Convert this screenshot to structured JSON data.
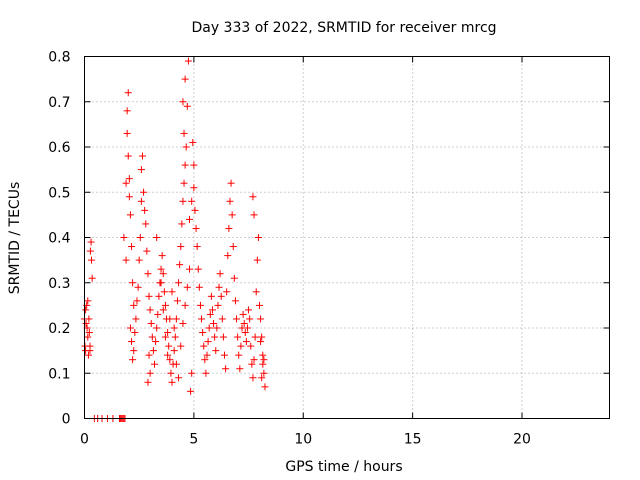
{
  "chart_data": {
    "type": "scatter",
    "title": "Day 333 of 2022, SRMTID for receiver mrcg",
    "xlabel": "GPS time / hours",
    "ylabel": "SRMTID / TECUs",
    "xlim": [
      0,
      24
    ],
    "ylim": [
      0,
      0.8
    ],
    "x_ticks": [
      0,
      5,
      10,
      15,
      20
    ],
    "x_tick_labels": [
      "0",
      "5",
      "10",
      "15",
      "20"
    ],
    "y_ticks": [
      0,
      0.1,
      0.2,
      0.3,
      0.4,
      0.5,
      0.6,
      0.7,
      0.8
    ],
    "y_tick_labels": [
      "0",
      "0.1",
      "0.2",
      "0.3",
      "0.4",
      "0.5",
      "0.6",
      "0.7",
      "0.8"
    ],
    "grid": true,
    "marker": "+",
    "marker_color": "#ff0000",
    "series": [
      {
        "name": "SRMTID",
        "points": [
          [
            0.0,
            0.22
          ],
          [
            0.02,
            0.16
          ],
          [
            0.05,
            0.15
          ],
          [
            0.07,
            0.21
          ],
          [
            0.1,
            0.25
          ],
          [
            0.12,
            0.2
          ],
          [
            0.15,
            0.18
          ],
          [
            0.18,
            0.14
          ],
          [
            0.2,
            0.22
          ],
          [
            0.22,
            0.19
          ],
          [
            0.25,
            0.16
          ],
          [
            0.27,
            0.37
          ],
          [
            0.3,
            0.39
          ],
          [
            0.32,
            0.35
          ],
          [
            0.35,
            0.31
          ],
          [
            0.05,
            0.24
          ],
          [
            0.15,
            0.26
          ],
          [
            0.25,
            0.15
          ],
          [
            0.45,
            0.0
          ],
          [
            0.6,
            0.0
          ],
          [
            0.8,
            0.0
          ],
          [
            1.05,
            0.0
          ],
          [
            1.3,
            0.0
          ],
          [
            1.6,
            0.0
          ],
          [
            1.65,
            0.0
          ],
          [
            1.7,
            0.0
          ],
          [
            1.75,
            0.0
          ],
          [
            1.8,
            0.0
          ],
          [
            1.85,
            0.0
          ],
          [
            1.8,
            0.4
          ],
          [
            1.9,
            0.52
          ],
          [
            1.95,
            0.68
          ],
          [
            2.0,
            0.72
          ],
          [
            1.95,
            0.63
          ],
          [
            2.0,
            0.58
          ],
          [
            2.05,
            0.49
          ],
          [
            2.1,
            0.45
          ],
          [
            2.15,
            0.38
          ],
          [
            2.2,
            0.3
          ],
          [
            2.25,
            0.25
          ],
          [
            2.05,
            0.53
          ],
          [
            1.9,
            0.35
          ],
          [
            2.1,
            0.2
          ],
          [
            2.15,
            0.17
          ],
          [
            2.2,
            0.13
          ],
          [
            2.25,
            0.15
          ],
          [
            2.3,
            0.19
          ],
          [
            2.35,
            0.22
          ],
          [
            2.4,
            0.26
          ],
          [
            2.45,
            0.29
          ],
          [
            2.5,
            0.35
          ],
          [
            2.55,
            0.4
          ],
          [
            2.6,
            0.48
          ],
          [
            2.6,
            0.55
          ],
          [
            2.65,
            0.58
          ],
          [
            2.7,
            0.5
          ],
          [
            2.75,
            0.46
          ],
          [
            2.8,
            0.43
          ],
          [
            2.85,
            0.37
          ],
          [
            2.9,
            0.32
          ],
          [
            2.95,
            0.27
          ],
          [
            3.0,
            0.24
          ],
          [
            3.05,
            0.21
          ],
          [
            3.1,
            0.18
          ],
          [
            3.15,
            0.15
          ],
          [
            3.2,
            0.12
          ],
          [
            3.0,
            0.1
          ],
          [
            2.9,
            0.08
          ],
          [
            2.95,
            0.14
          ],
          [
            3.25,
            0.17
          ],
          [
            3.3,
            0.2
          ],
          [
            3.35,
            0.23
          ],
          [
            3.4,
            0.27
          ],
          [
            3.45,
            0.3
          ],
          [
            3.5,
            0.33
          ],
          [
            3.55,
            0.36
          ],
          [
            3.6,
            0.32
          ],
          [
            3.65,
            0.28
          ],
          [
            3.7,
            0.25
          ],
          [
            3.75,
            0.22
          ],
          [
            3.8,
            0.19
          ],
          [
            3.85,
            0.16
          ],
          [
            3.9,
            0.13
          ],
          [
            3.95,
            0.1
          ],
          [
            4.0,
            0.08
          ],
          [
            4.05,
            0.12
          ],
          [
            4.1,
            0.15
          ],
          [
            4.15,
            0.18
          ],
          [
            4.2,
            0.22
          ],
          [
            4.25,
            0.26
          ],
          [
            4.3,
            0.3
          ],
          [
            4.35,
            0.34
          ],
          [
            4.4,
            0.38
          ],
          [
            4.45,
            0.43
          ],
          [
            4.5,
            0.48
          ],
          [
            4.55,
            0.52
          ],
          [
            4.6,
            0.56
          ],
          [
            4.65,
            0.6
          ],
          [
            4.7,
            0.69
          ],
          [
            4.75,
            0.79
          ],
          [
            4.6,
            0.75
          ],
          [
            4.5,
            0.7
          ],
          [
            4.55,
            0.63
          ],
          [
            3.3,
            0.4
          ],
          [
            3.5,
            0.3
          ],
          [
            3.6,
            0.24
          ],
          [
            3.7,
            0.18
          ],
          [
            3.8,
            0.14
          ],
          [
            3.9,
            0.22
          ],
          [
            4.0,
            0.28
          ],
          [
            4.1,
            0.2
          ],
          [
            4.2,
            0.12
          ],
          [
            4.3,
            0.09
          ],
          [
            4.4,
            0.16
          ],
          [
            4.5,
            0.21
          ],
          [
            4.6,
            0.25
          ],
          [
            4.7,
            0.29
          ],
          [
            4.8,
            0.33
          ],
          [
            4.85,
            0.06
          ],
          [
            4.9,
            0.1
          ],
          [
            4.8,
            0.44
          ],
          [
            4.9,
            0.48
          ],
          [
            5.0,
            0.51
          ],
          [
            5.05,
            0.46
          ],
          [
            5.1,
            0.42
          ],
          [
            5.15,
            0.38
          ],
          [
            5.2,
            0.33
          ],
          [
            5.25,
            0.29
          ],
          [
            5.3,
            0.25
          ],
          [
            5.35,
            0.22
          ],
          [
            5.4,
            0.19
          ],
          [
            5.45,
            0.16
          ],
          [
            5.5,
            0.13
          ],
          [
            5.55,
            0.1
          ],
          [
            5.0,
            0.56
          ],
          [
            4.95,
            0.61
          ],
          [
            5.6,
            0.14
          ],
          [
            5.65,
            0.17
          ],
          [
            5.7,
            0.2
          ],
          [
            5.75,
            0.23
          ],
          [
            5.8,
            0.27
          ],
          [
            5.85,
            0.24
          ],
          [
            5.9,
            0.21
          ],
          [
            5.95,
            0.18
          ],
          [
            6.0,
            0.15
          ],
          [
            6.05,
            0.2
          ],
          [
            6.1,
            0.25
          ],
          [
            6.15,
            0.29
          ],
          [
            6.2,
            0.32
          ],
          [
            6.25,
            0.27
          ],
          [
            6.3,
            0.22
          ],
          [
            6.35,
            0.18
          ],
          [
            6.4,
            0.14
          ],
          [
            6.45,
            0.11
          ],
          [
            6.5,
            0.28
          ],
          [
            6.55,
            0.36
          ],
          [
            6.6,
            0.42
          ],
          [
            6.65,
            0.48
          ],
          [
            6.7,
            0.52
          ],
          [
            6.75,
            0.45
          ],
          [
            6.8,
            0.38
          ],
          [
            6.85,
            0.31
          ],
          [
            6.9,
            0.26
          ],
          [
            6.95,
            0.22
          ],
          [
            7.0,
            0.18
          ],
          [
            7.05,
            0.14
          ],
          [
            7.1,
            0.11
          ],
          [
            7.15,
            0.16
          ],
          [
            7.2,
            0.2
          ],
          [
            7.25,
            0.23
          ],
          [
            7.3,
            0.21
          ],
          [
            7.35,
            0.19
          ],
          [
            7.4,
            0.17
          ],
          [
            7.45,
            0.2
          ],
          [
            7.5,
            0.24
          ],
          [
            7.55,
            0.22
          ],
          [
            7.6,
            0.16
          ],
          [
            7.65,
            0.12
          ],
          [
            7.7,
            0.09
          ],
          [
            7.75,
            0.13
          ],
          [
            7.8,
            0.18
          ],
          [
            7.85,
            0.28
          ],
          [
            7.9,
            0.35
          ],
          [
            7.95,
            0.4
          ],
          [
            7.7,
            0.49
          ],
          [
            7.75,
            0.45
          ],
          [
            8.0,
            0.25
          ],
          [
            8.05,
            0.22
          ],
          [
            8.1,
            0.18
          ],
          [
            8.15,
            0.14
          ],
          [
            8.2,
            0.1
          ],
          [
            8.25,
            0.07
          ],
          [
            8.15,
            0.12
          ],
          [
            8.05,
            0.17
          ],
          [
            8.1,
            0.09
          ],
          [
            8.2,
            0.13
          ]
        ]
      }
    ]
  }
}
